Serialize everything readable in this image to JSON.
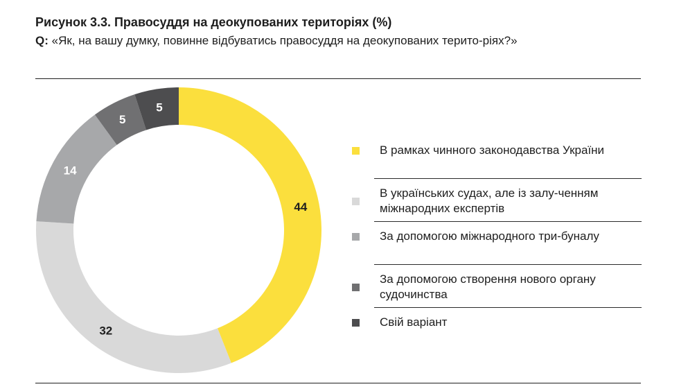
{
  "header": {
    "title": "Рисунок 3.3. Правосуддя на деокупованих територіях (%)",
    "question_prefix": "Q:",
    "question": "«Як, на вашу думку, повинне відбуватись правосуддя на деокупованих терито-ріях?»"
  },
  "chart_data": {
    "type": "pie",
    "variant": "donut",
    "title": "Рисунок 3.3. Правосуддя на деокупованих територіях (%)",
    "unit": "%",
    "start_angle_deg": 0,
    "direction": "clockwise",
    "legend_position": "right",
    "slices": [
      {
        "label": "В рамках чинного законодавства України",
        "value": 44,
        "color": "#fbdf3d",
        "label_color": "#1e1e1e"
      },
      {
        "label": "В українських судах, але із залу-ченням міжнародних експертів",
        "value": 32,
        "color": "#d9d9d9",
        "label_color": "#1e1e1e"
      },
      {
        "label": "За допомогою міжнародного три-буналу",
        "value": 14,
        "color": "#a7a8aa",
        "label_color": "#ffffff"
      },
      {
        "label": "За допомогою створення нового органу судочинства",
        "value": 5,
        "color": "#707072",
        "label_color": "#ffffff"
      },
      {
        "label": "Свій варіант",
        "value": 5,
        "color": "#4d4d4f",
        "label_color": "#ffffff"
      }
    ]
  }
}
